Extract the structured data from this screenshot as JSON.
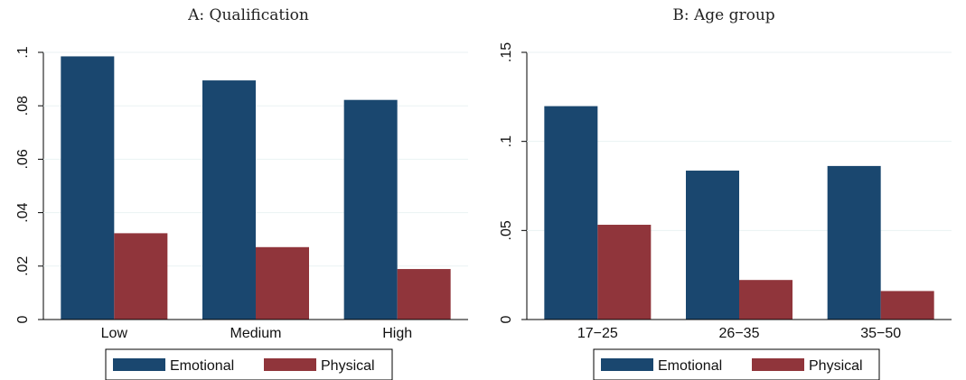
{
  "chart_data": [
    {
      "type": "bar",
      "title": "A: Qualification",
      "categories": [
        "Low",
        "Medium",
        "High"
      ],
      "series": [
        {
          "name": "Emotional",
          "values": [
            0.0985,
            0.0895,
            0.0822
          ],
          "color": "#1a476f"
        },
        {
          "name": "Physical",
          "values": [
            0.0323,
            0.0271,
            0.0189
          ],
          "color": "#90353b"
        }
      ],
      "ylim": [
        0,
        0.1
      ],
      "yticks": [
        0,
        0.02,
        0.04,
        0.06,
        0.08,
        0.1
      ],
      "ytick_labels": [
        "0",
        ".02",
        ".04",
        ".06",
        ".08",
        ".1"
      ],
      "grid": true,
      "legend_position": "bottom"
    },
    {
      "type": "bar",
      "title": "B: Age group",
      "categories": [
        "17−25",
        "26−35",
        "35−50"
      ],
      "series": [
        {
          "name": "Emotional",
          "values": [
            0.1198,
            0.0836,
            0.0862
          ],
          "color": "#1a476f"
        },
        {
          "name": "Physical",
          "values": [
            0.0532,
            0.0222,
            0.016
          ],
          "color": "#90353b"
        }
      ],
      "ylim": [
        0,
        0.15
      ],
      "yticks": [
        0,
        0.05,
        0.1,
        0.15
      ],
      "ytick_labels": [
        "0",
        ".05",
        ".1",
        ".15"
      ],
      "grid": true,
      "legend_position": "bottom"
    }
  ]
}
